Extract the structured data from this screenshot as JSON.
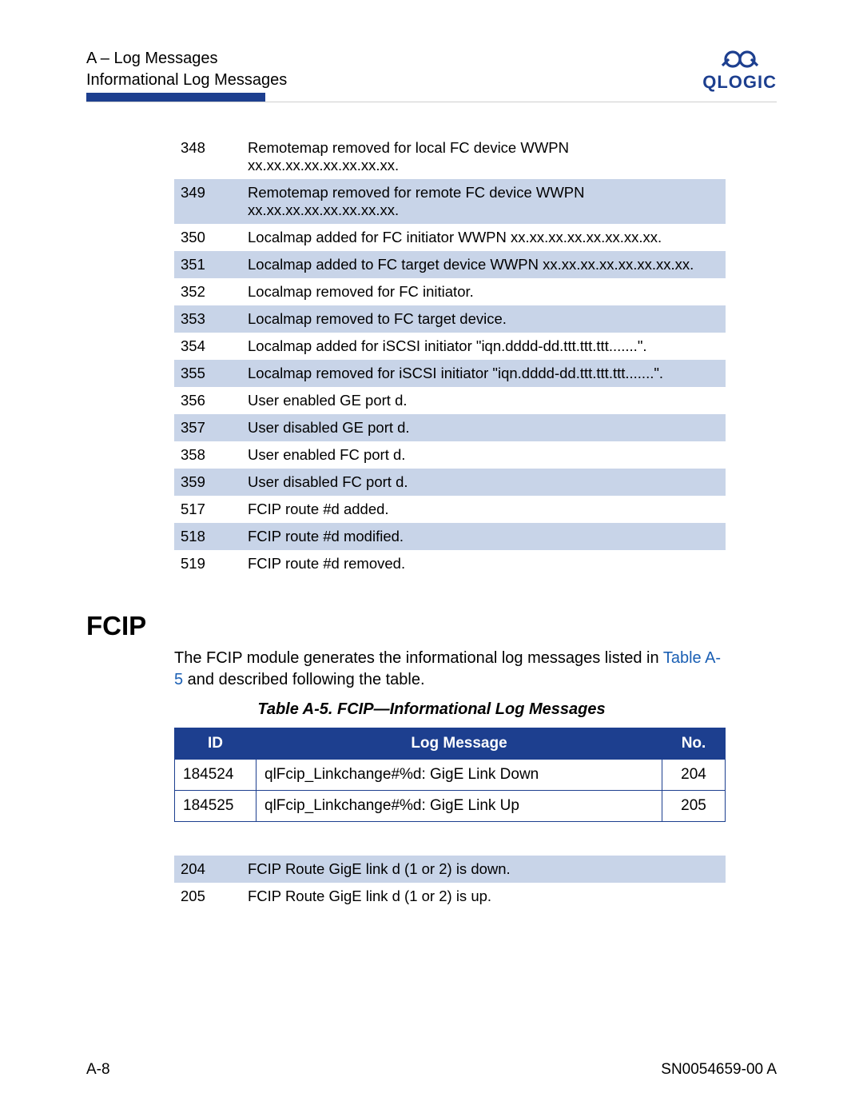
{
  "colors": {
    "brand": "#1d3f8f",
    "row_alt": "#c8d4e8",
    "link": "#1a5fb4",
    "rule": "#cfcfcf",
    "text": "#000000",
    "bg": "#ffffff"
  },
  "header": {
    "line1": "A – Log Messages",
    "line2": "Informational Log Messages"
  },
  "logo": {
    "text": "QLOGIC"
  },
  "top_table": {
    "type": "table",
    "row_alt_color": "#c8d4e8",
    "fontsize": 18.5,
    "rows": [
      {
        "id": "348",
        "msg": "Remotemap removed for local FC device WWPN xx.xx.xx.xx.xx.xx.xx.xx.",
        "alt": false
      },
      {
        "id": "349",
        "msg": "Remotemap removed for remote FC device WWPN xx.xx.xx.xx.xx.xx.xx.xx.",
        "alt": true
      },
      {
        "id": "350",
        "msg": "Localmap added for FC initiator WWPN xx.xx.xx.xx.xx.xx.xx.xx.",
        "alt": false
      },
      {
        "id": "351",
        "msg": "Localmap added to FC target device WWPN xx.xx.xx.xx.xx.xx.xx.xx.",
        "alt": true
      },
      {
        "id": "352",
        "msg": "Localmap removed for FC initiator.",
        "alt": false
      },
      {
        "id": "353",
        "msg": "Localmap removed to FC target device.",
        "alt": true
      },
      {
        "id": "354",
        "msg": "Localmap added for iSCSI initiator \"iqn.dddd-dd.ttt.ttt.ttt.......\".",
        "alt": false
      },
      {
        "id": "355",
        "msg": "Localmap removed for iSCSI initiator \"iqn.dddd-dd.ttt.ttt.ttt.......\".",
        "alt": true
      },
      {
        "id": "356",
        "msg": "User enabled GE port d.",
        "alt": false
      },
      {
        "id": "357",
        "msg": "User disabled GE port d.",
        "alt": true
      },
      {
        "id": "358",
        "msg": "User enabled FC port d.",
        "alt": false
      },
      {
        "id": "359",
        "msg": "User disabled FC port d.",
        "alt": true
      },
      {
        "id": "517",
        "msg": "FCIP route #d added.",
        "alt": false
      },
      {
        "id": "518",
        "msg": "FCIP route #d modified.",
        "alt": true
      },
      {
        "id": "519",
        "msg": "FCIP route #d removed.",
        "alt": false
      }
    ]
  },
  "section": {
    "heading": "FCIP",
    "body_pre": "The FCIP module generates the informational log messages listed in ",
    "body_link": "Table A-5",
    "body_post": " and described following the table.",
    "caption": "Table A-5. FCIP—Informational Log Messages"
  },
  "border_table": {
    "type": "table",
    "border_color": "#1d3f8f",
    "header_bg": "#1d3f8f",
    "header_fg": "#ffffff",
    "fontsize": 19,
    "columns": [
      "ID",
      "Log Message",
      "No."
    ],
    "rows": [
      {
        "c1": "184524",
        "c2": "qlFcip_Linkchange#%d: GigE Link Down",
        "c3": "204"
      },
      {
        "c1": "184525",
        "c2": "qlFcip_Linkchange#%d: GigE Link Up",
        "c3": "205"
      }
    ]
  },
  "bottom_table": {
    "type": "table",
    "row_alt_color": "#c8d4e8",
    "fontsize": 18.5,
    "rows": [
      {
        "id": "204",
        "msg": "FCIP Route GigE link d (1 or 2) is down.",
        "alt": true
      },
      {
        "id": "205",
        "msg": "FCIP Route GigE link d (1 or 2) is up.",
        "alt": false
      }
    ]
  },
  "footer": {
    "left": "A-8",
    "right": "SN0054659-00 A"
  }
}
